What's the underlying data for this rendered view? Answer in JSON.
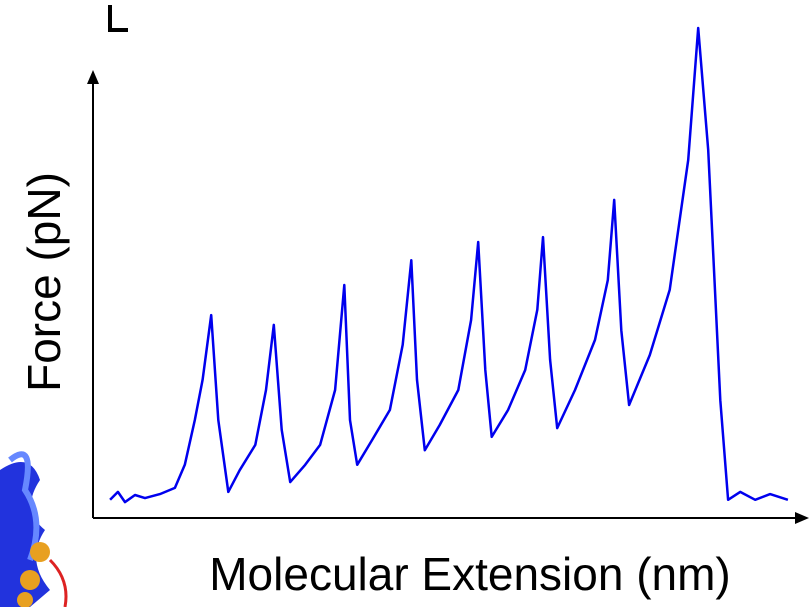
{
  "chart_data": {
    "type": "line",
    "x_label": "Molecular Extension (nm)",
    "y_label": "Force (pN)",
    "xlim": [
      0,
      100
    ],
    "ylim": [
      0,
      120
    ],
    "series": [
      {
        "color": "#0000ee",
        "x": [
          2.4,
          3.5,
          4.5,
          5.9,
          7.3,
          9.4,
          11.5,
          12.9,
          14.3,
          15.4,
          16.6,
          17.6,
          19.0,
          20.6,
          22.8,
          24.3,
          25.4,
          26.5,
          27.7,
          29.8,
          31.9,
          34.0,
          35.3,
          36.1,
          37.1,
          39.2,
          41.7,
          43.5,
          44.7,
          45.5,
          46.6,
          48.7,
          51.3,
          53.1,
          54.1,
          55.1,
          56.0,
          58.3,
          60.7,
          62.4,
          63.2,
          64.2,
          65.2,
          67.7,
          70.5,
          72.3,
          73.2,
          74.2,
          75.3,
          78.2,
          81.0,
          83.6,
          85.0,
          86.4,
          88.1,
          89.2,
          90.9,
          93.0,
          95.1,
          97.6
        ],
        "values": [
          4.1,
          5.9,
          3.6,
          5.2,
          4.5,
          5.4,
          6.8,
          12.0,
          22.1,
          31.2,
          45.8,
          22.1,
          5.9,
          10.8,
          16.5,
          28.9,
          43.6,
          19.9,
          8.1,
          12.0,
          16.5,
          28.9,
          52.6,
          22.1,
          12.0,
          17.6,
          24.4,
          39.1,
          58.2,
          31.2,
          15.3,
          21.0,
          28.9,
          44.7,
          62.3,
          33.4,
          18.3,
          24.4,
          33.4,
          47.0,
          63.4,
          35.7,
          20.3,
          28.9,
          40.2,
          53.7,
          71.8,
          42.4,
          25.5,
          36.8,
          51.5,
          80.8,
          110.6,
          83.1,
          26.6,
          4.1,
          5.9,
          4.1,
          5.4,
          4.1
        ]
      }
    ]
  }
}
